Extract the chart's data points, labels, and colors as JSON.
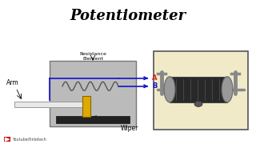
{
  "title": "Potentiometer",
  "title_bg": "#FFFF00",
  "title_fontsize": 13,
  "title_font": "serif",
  "title_fontstyle": "italic",
  "body_bg": "#FFFFFF",
  "diagram_bg": "#BBBBBB",
  "label_resistance": "Resistance\nElement",
  "label_arm": "Arm",
  "label_wiper": "Wiper",
  "label_A": "A",
  "label_B": "B",
  "watermark": "Youtube/finlotech",
  "arrow_color": "#1111CC",
  "label_A_color": "#CC2222",
  "label_B_color": "#1111CC",
  "wiper_color": "#DDAA00",
  "coil_color": "#555555",
  "arm_color": "#E8E8E8",
  "outline_color": "#888888",
  "photo_bg": "#F0EAC8",
  "photo_border": "#555555"
}
